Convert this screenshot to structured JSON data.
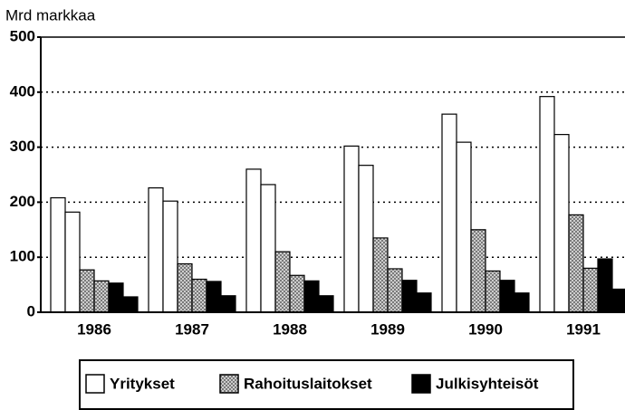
{
  "chart_data": {
    "type": "bar",
    "ylabel": "Mrd markkaa",
    "categories": [
      "1986",
      "1987",
      "1988",
      "1989",
      "1990",
      "1991"
    ],
    "series": [
      {
        "name": "Yritykset",
        "color": "#ffffff",
        "values": [
          [
            208,
            182
          ],
          [
            226,
            202
          ],
          [
            260,
            232
          ],
          [
            302,
            267
          ],
          [
            360,
            309
          ],
          [
            392,
            323
          ]
        ]
      },
      {
        "name": "Rahoituslaitokset",
        "color": "#777777",
        "hatch": true,
        "values": [
          [
            77,
            57
          ],
          [
            88,
            60
          ],
          [
            110,
            67
          ],
          [
            135,
            79
          ],
          [
            150,
            75
          ],
          [
            177,
            80
          ]
        ]
      },
      {
        "name": "Julkisyhteisöt",
        "color": "#000000",
        "values": [
          [
            53,
            28
          ],
          [
            56,
            30
          ],
          [
            57,
            30
          ],
          [
            58,
            35
          ],
          [
            58,
            35
          ],
          [
            97,
            42
          ]
        ]
      }
    ],
    "ylim": [
      0,
      500
    ],
    "yticks": [
      0,
      100,
      200,
      300,
      400,
      500
    ],
    "grid": true
  }
}
